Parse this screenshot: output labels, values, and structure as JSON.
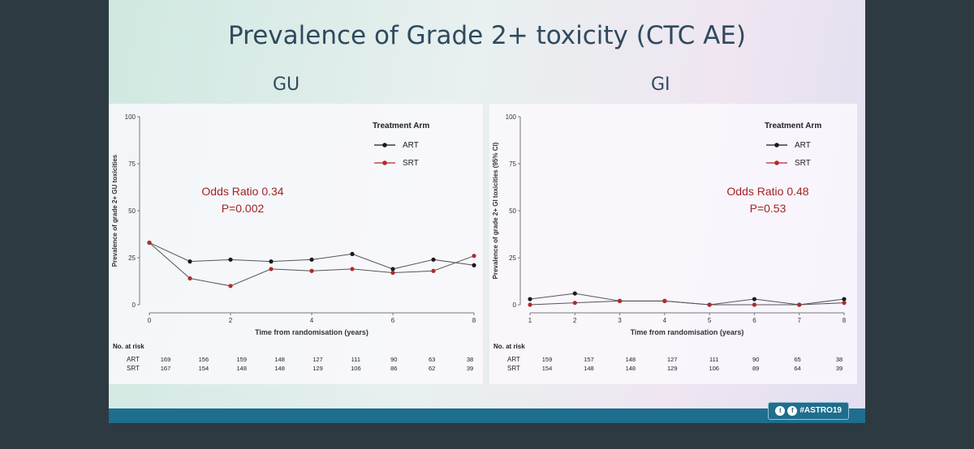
{
  "slide": {
    "title": "Prevalence of Grade 2+ toxicity (CTC AE)",
    "hashtag": "#ASTRO19",
    "social_icons": [
      "twitter-icon",
      "facebook-icon"
    ],
    "colors": {
      "ART": "#1a1a1a",
      "SRT": "#b22a2a",
      "accent": "#1e6e8e"
    }
  },
  "chart_data": [
    {
      "type": "line",
      "subtitle": "GU",
      "ylabel": "Prevalence of grade 2+ GU toxicities",
      "xlabel": "Time from randomisation (years)",
      "ylim": [
        0,
        100
      ],
      "y_ticks": [
        "0",
        "25",
        "50",
        "75",
        "100"
      ],
      "x_ticks": [
        "0",
        "2",
        "4",
        "6",
        "8"
      ],
      "x": [
        0,
        1,
        2,
        3,
        4,
        5,
        6,
        7,
        8
      ],
      "series": [
        {
          "name": "ART",
          "values": [
            33,
            23,
            24,
            23,
            24,
            27,
            19,
            24,
            21
          ]
        },
        {
          "name": "SRT",
          "values": [
            33,
            14,
            10,
            19,
            18,
            19,
            17,
            18,
            26
          ]
        }
      ],
      "legend": {
        "title": "Treatment Arm",
        "position": "top-right"
      },
      "annotation": [
        "Odds Ratio 0.34",
        "P=0.002"
      ],
      "risk_table": {
        "header": "No. at risk",
        "rows": [
          {
            "label": "ART",
            "values": [
              "169",
              "156",
              "159",
              "148",
              "127",
              "111",
              "90",
              "63",
              "38"
            ]
          },
          {
            "label": "SRT",
            "values": [
              "167",
              "154",
              "148",
              "148",
              "129",
              "106",
              "86",
              "62",
              "39"
            ]
          }
        ]
      }
    },
    {
      "type": "line",
      "subtitle": "GI",
      "ylabel": "Prevalence of grade 2+ GI toxicities (95% CI)",
      "xlabel": "Time from randomisation (years)",
      "ylim": [
        0,
        100
      ],
      "y_ticks": [
        "0",
        "25",
        "50",
        "75",
        "100"
      ],
      "x_ticks": [
        "1",
        "2",
        "3",
        "4",
        "5",
        "6",
        "7",
        "8"
      ],
      "x": [
        1,
        2,
        3,
        4,
        5,
        6,
        7,
        8
      ],
      "series": [
        {
          "name": "ART",
          "values": [
            3,
            6,
            2,
            2,
            0,
            3,
            0,
            3
          ]
        },
        {
          "name": "SRT",
          "values": [
            0,
            1,
            2,
            2,
            0,
            0,
            0,
            1
          ]
        }
      ],
      "legend": {
        "title": "Treatment Arm",
        "position": "top-right"
      },
      "annotation": [
        "Odds Ratio 0.48",
        "P=0.53"
      ],
      "risk_table": {
        "header": "No. at risk",
        "rows": [
          {
            "label": "ART",
            "values": [
              "159",
              "157",
              "148",
              "127",
              "111",
              "90",
              "65",
              "38"
            ]
          },
          {
            "label": "SRT",
            "values": [
              "154",
              "148",
              "148",
              "129",
              "106",
              "89",
              "64",
              "39"
            ]
          }
        ]
      }
    }
  ]
}
